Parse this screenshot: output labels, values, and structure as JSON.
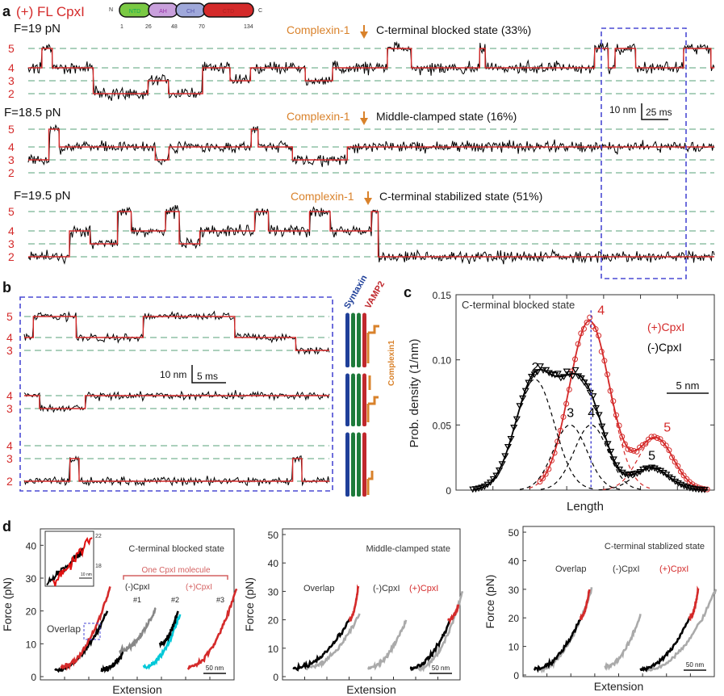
{
  "panel_a": {
    "letter": "a",
    "title": "(+) FL CpxI",
    "domain_map": {
      "n_label": "N",
      "c_label": "C",
      "domains": [
        {
          "name": "NTD",
          "color": "#7ac943"
        },
        {
          "name": "AH",
          "color": "#c9a0dc"
        },
        {
          "name": "CH",
          "color": "#9fa8da"
        },
        {
          "name": "CTD",
          "color": "#d42a2a"
        }
      ],
      "residues": [
        "1",
        "26",
        "48",
        "70",
        "134"
      ]
    },
    "traces": [
      {
        "force": "F=19 pN",
        "annotation": "Complexin-1",
        "state": "C-terminal blocked state (33%)",
        "levels": [
          "5",
          "4",
          "3",
          "2"
        ],
        "sequence": [
          [
            4,
            2
          ],
          [
            5,
            1.5
          ],
          [
            4,
            6
          ],
          [
            2,
            8
          ],
          [
            3,
            3
          ],
          [
            2,
            5
          ],
          [
            4,
            4
          ],
          [
            3,
            3
          ],
          [
            4,
            8
          ],
          [
            3,
            4
          ],
          [
            4,
            8
          ],
          [
            5,
            3.5
          ],
          [
            4,
            10
          ],
          [
            5,
            0.8
          ],
          [
            4,
            16
          ],
          [
            5,
            2
          ],
          [
            4,
            1
          ],
          [
            5,
            3
          ],
          [
            4,
            7
          ],
          [
            5,
            4
          ],
          [
            4,
            0.5
          ]
        ]
      },
      {
        "force": "F=18.5 pN",
        "annotation": "Complexin-1",
        "state": "Middle-clamped state (16%)",
        "levels": [
          "5",
          "4",
          "3",
          "2"
        ],
        "sequence": [
          [
            3,
            3
          ],
          [
            5,
            1.5
          ],
          [
            4,
            14
          ],
          [
            3,
            2
          ],
          [
            4,
            12
          ],
          [
            5,
            1
          ],
          [
            4,
            5
          ],
          [
            3,
            8
          ],
          [
            4,
            53.5
          ]
        ]
      },
      {
        "force": "F=19.5 pN",
        "annotation": "Complexin-1",
        "state": "C-terminal stabilized state (51%)",
        "levels": [
          "5",
          "4",
          "3",
          "2"
        ],
        "sequence": [
          [
            2,
            6
          ],
          [
            4,
            3
          ],
          [
            3,
            4
          ],
          [
            5,
            2
          ],
          [
            4,
            5
          ],
          [
            5,
            2
          ],
          [
            3,
            3
          ],
          [
            4,
            8
          ],
          [
            5,
            2
          ],
          [
            4,
            6
          ],
          [
            5,
            3
          ],
          [
            4,
            6
          ],
          [
            5,
            1
          ],
          [
            2,
            49
          ]
        ]
      }
    ],
    "scale_bar": {
      "y_label": "10 nm",
      "x_label": "25 ms"
    },
    "colors": {
      "trace": "#000000",
      "fit": "#d42a2a",
      "guide": "#2e8b57",
      "box": "#4a4ad4",
      "arrow": "#d9822b"
    }
  },
  "panel_b": {
    "letter": "b",
    "traces": [
      {
        "levels": [
          "5",
          "4",
          "3"
        ],
        "sequence": [
          [
            4,
            3
          ],
          [
            5,
            14
          ],
          [
            4,
            22
          ],
          [
            5,
            30
          ],
          [
            4,
            20
          ],
          [
            3,
            11
          ]
        ]
      },
      {
        "levels": [
          "4",
          "3"
        ],
        "sequence": [
          [
            4,
            5
          ],
          [
            3,
            15
          ],
          [
            4,
            80
          ]
        ]
      },
      {
        "levels": [
          "4",
          "3",
          "2"
        ],
        "sequence": [
          [
            2,
            15
          ],
          [
            3,
            3
          ],
          [
            2,
            70
          ],
          [
            3,
            3
          ],
          [
            2,
            9
          ]
        ]
      }
    ],
    "scale_bar": {
      "y_label": "10 nm",
      "x_label": "5 ms"
    },
    "schematic": {
      "syntaxin": "Syntaxin",
      "vamp2": "VAMP2",
      "complexin": "Complexin1",
      "colors": {
        "syntaxin": "#1f3f99",
        "snap25": "#1e7a3a",
        "vamp2": "#c0282d",
        "complexin": "#d9822b"
      }
    }
  },
  "chart_data": [
    {
      "type": "scatter",
      "panel": "c",
      "title": "C-terminal blocked state",
      "xlabel": "Length",
      "ylabel": "Prob. density (1/nm)",
      "ylim": [
        0,
        0.15
      ],
      "xlim": [
        0,
        30.8
      ],
      "yticks": [
        "0",
        "0.05",
        "0.10",
        "0.15"
      ],
      "scale_bar": "5 nm",
      "series": [
        {
          "name": "(+)CpxI",
          "color": "#d42a2a",
          "marker": "circle",
          "components": [
            {
              "state": "4",
              "mean": 15.9,
              "amp": 0.13,
              "sd": 2.4
            },
            {
              "state": "5",
              "mean": 23.8,
              "amp": 0.04,
              "sd": 2.1
            }
          ],
          "range": [
            10,
            30
          ]
        },
        {
          "name": "(-)CpxI",
          "color": "#000000",
          "marker": "triangle-down",
          "components": [
            {
              "state": "2",
              "mean": 9.4,
              "amp": 0.085,
              "sd": 2.3
            },
            {
              "state": "3",
              "mean": 13.6,
              "amp": 0.05,
              "sd": 2.0
            },
            {
              "state": "4",
              "mean": 16.1,
              "amp": 0.05,
              "sd": 2.0
            },
            {
              "state": "5",
              "mean": 23.3,
              "amp": 0.017,
              "sd": 2.1
            }
          ],
          "range": [
            2,
            30
          ]
        }
      ]
    },
    {
      "type": "line",
      "panel": "d1",
      "title": "C-terminal blocked state",
      "xlabel": "Extension",
      "ylabel": "Force (pN)",
      "ylim": [
        0,
        45
      ],
      "yticks": [
        "0",
        "10",
        "20",
        "30",
        "40"
      ],
      "scale_bar": "50 nm",
      "labels": {
        "overlap": "Overlap",
        "bracket": "One CpxI molecule",
        "minus": "(-)CpxI",
        "plus": "(+)CpxI",
        "n1": "#1",
        "n2": "#2",
        "n3": "#3"
      },
      "inset_ticks": [
        "22",
        "18"
      ],
      "inset_scale": "10 nm",
      "curves": [
        {
          "color": "#000000",
          "x": [
            18,
            134
          ],
          "f": [
            2,
            20
          ]
        },
        {
          "color": "#d42a2a",
          "x": [
            30,
            140
          ],
          "f": [
            3,
            27
          ]
        },
        {
          "color": "#000000",
          "x": [
            121,
            170
          ],
          "f": [
            2,
            8
          ]
        },
        {
          "color": "#888888",
          "x": [
            160,
            241
          ],
          "f": [
            8,
            21
          ]
        },
        {
          "color": "#00c8d8",
          "x": [
            214,
            295
          ],
          "f": [
            3,
            19
          ]
        },
        {
          "color": "#000000",
          "x": [
            250,
            290
          ],
          "f": [
            10,
            20
          ]
        },
        {
          "color": "#d42a2a",
          "x": [
            312,
            420
          ],
          "f": [
            3,
            27
          ]
        }
      ]
    },
    {
      "type": "line",
      "panel": "d2",
      "title": "Middle-clamped state",
      "xlabel": "Extension",
      "ylabel": "Force (pN)",
      "ylim": [
        0,
        52
      ],
      "yticks": [
        "0",
        "10",
        "20",
        "30",
        "40",
        "50"
      ],
      "scale_bar": "50 nm",
      "labels": {
        "overlap": "Overlap",
        "minus": "(-)CpxI",
        "plus": "(+)CpxI"
      },
      "curves": [
        {
          "color": "#aaaaaa",
          "x": [
            40,
            175
          ],
          "f": [
            3,
            22
          ]
        },
        {
          "color": "#000000",
          "x": [
            10,
            150
          ],
          "f": [
            3,
            20
          ]
        },
        {
          "color": "#d42a2a",
          "x": [
            150,
            172
          ],
          "f": [
            20,
            32
          ]
        },
        {
          "color": "#aaaaaa",
          "x": [
            195,
            290
          ],
          "f": [
            3,
            20
          ]
        },
        {
          "color": "#aaaaaa",
          "x": [
            320,
            430
          ],
          "f": [
            3,
            30
          ]
        },
        {
          "color": "#000000",
          "x": [
            300,
            400
          ],
          "f": [
            3,
            20
          ]
        },
        {
          "color": "#d42a2a",
          "x": [
            395,
            420
          ],
          "f": [
            20,
            25
          ]
        }
      ]
    },
    {
      "type": "line",
      "panel": "d3",
      "title": "C-terminal stablized state",
      "xlabel": "Extension",
      "ylabel": "Force (pN)",
      "ylim": [
        0,
        52
      ],
      "yticks": [
        "0",
        "10",
        "20",
        "30",
        "40",
        "50"
      ],
      "scale_bar": "50 nm",
      "labels": {
        "overlap": "Overlap",
        "minus": "(-)CpxI",
        "plus": "(+)CpxI"
      },
      "curves": [
        {
          "color": "#aaaaaa",
          "x": [
            20,
            140
          ],
          "f": [
            2,
            30
          ]
        },
        {
          "color": "#000000",
          "x": [
            10,
            115
          ],
          "f": [
            2,
            20
          ]
        },
        {
          "color": "#d42a2a",
          "x": [
            115,
            135
          ],
          "f": [
            20,
            30
          ]
        },
        {
          "color": "#aaaaaa",
          "x": [
            170,
            250
          ],
          "f": [
            3,
            21
          ]
        },
        {
          "color": "#aaaaaa",
          "x": [
            265,
            420
          ],
          "f": [
            2,
            30
          ]
        },
        {
          "color": "#000000",
          "x": [
            250,
            360
          ],
          "f": [
            2,
            20
          ]
        },
        {
          "color": "#d42a2a",
          "x": [
            360,
            380
          ],
          "f": [
            20,
            30
          ]
        }
      ]
    }
  ]
}
